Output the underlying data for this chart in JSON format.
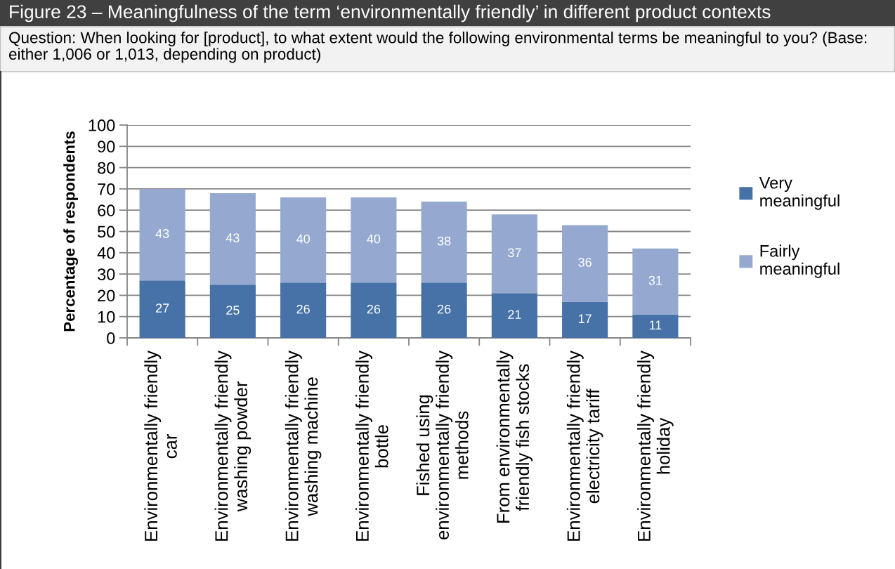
{
  "chart_data": {
    "type": "bar",
    "title": "Figure 23 – Meaningfulness of the term ‘environmentally friendly’ in different product contexts",
    "subtitle": "Question: When looking for [product], to what extent would the following environmental terms be meaningful to you? (Base: either 1,006 or 1,013, depending on product)",
    "ylabel": "Percentage of respondents",
    "categories": [
      "Environmentally friendly car",
      "Environmentally friendly washing powder",
      "Environmentally friendly washing machine",
      "Environmentally friendly bottle",
      "Fished using environmentally friendly methods",
      "From environmentally friendly fish stocks",
      "Environmentally friendly electricity tariff",
      "Environmentally friendly holiday"
    ],
    "series": [
      {
        "name": "Very meaningful",
        "color": "#4672a7",
        "values": [
          27,
          25,
          26,
          26,
          26,
          21,
          17,
          11
        ]
      },
      {
        "name": "Fairly meaningful",
        "color": "#95a9d0",
        "values": [
          43,
          43,
          40,
          40,
          38,
          37,
          36,
          31
        ]
      }
    ],
    "stacked": true,
    "ylim": [
      0,
      100
    ],
    "yticks": [
      0,
      10,
      20,
      30,
      40,
      50,
      60,
      70,
      80,
      90,
      100
    ],
    "grid": "y",
    "legend": "right",
    "data_labels": true
  }
}
